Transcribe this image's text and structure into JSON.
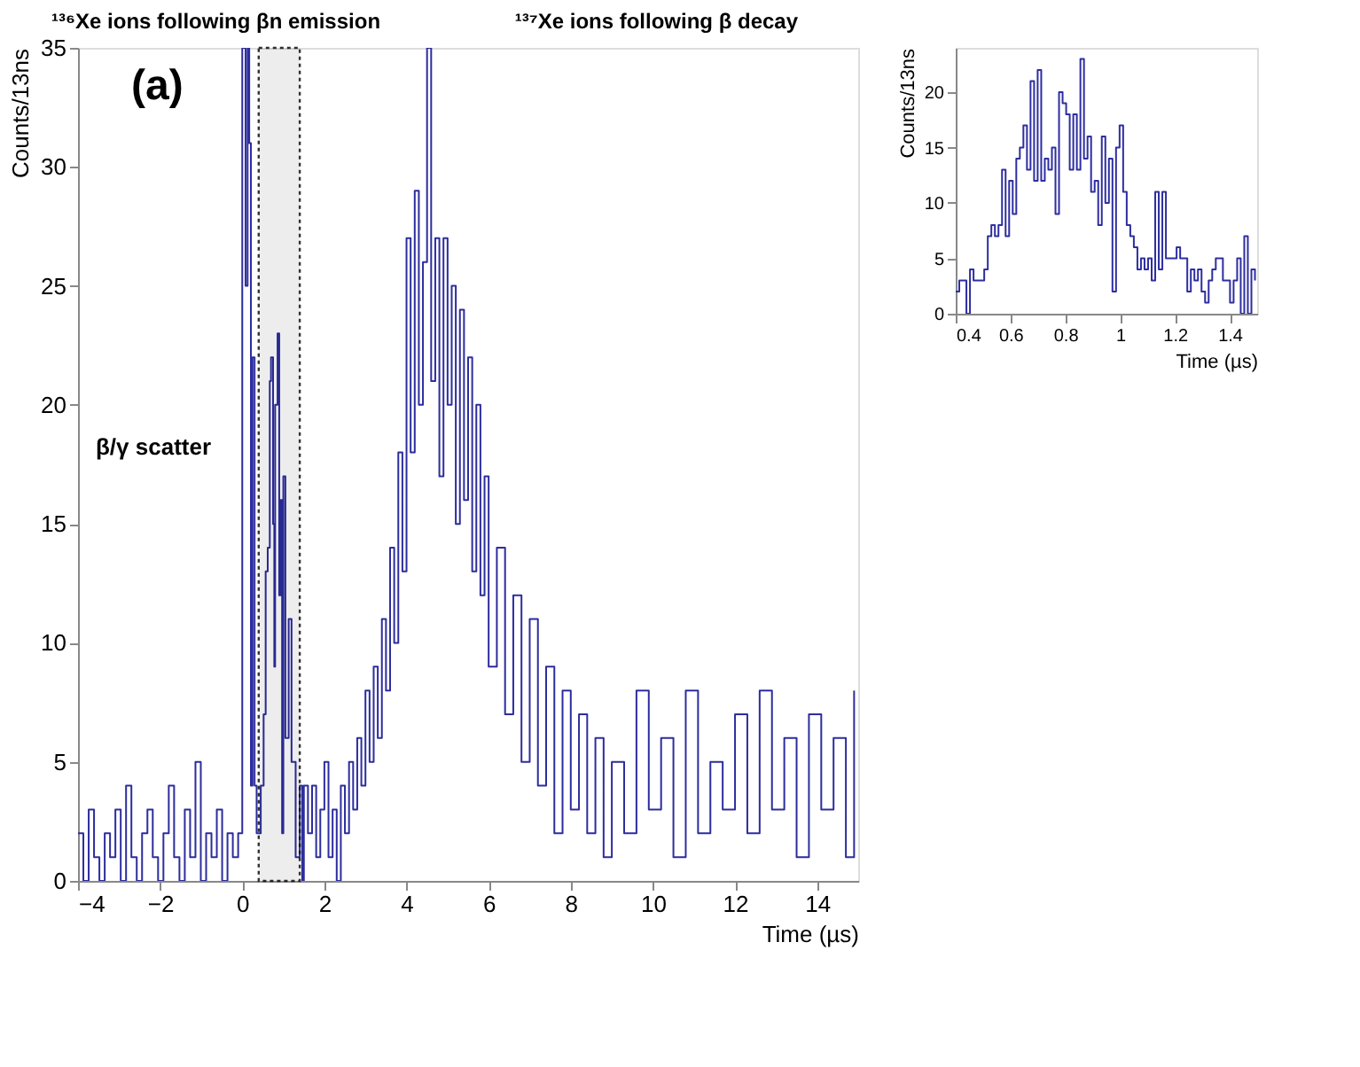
{
  "chart_data": [
    {
      "type": "step",
      "xlabel": "Time (µs)",
      "ylabel": "Counts/13ns",
      "xlim": [
        -4,
        15
      ],
      "ylim": [
        0,
        35
      ],
      "xticks": [
        -4,
        -2,
        0,
        2,
        4,
        6,
        8,
        10,
        12,
        14
      ],
      "yticks": [
        0,
        5,
        10,
        15,
        20,
        25,
        30,
        35
      ],
      "grid": false,
      "annotations": [
        "(a)",
        "¹³⁶Xe ions following βn emission",
        "¹³⁷Xe ions following β decay",
        "β/γ scatter"
      ],
      "bands": [
        {
          "axis": "x",
          "from": 0.4,
          "to": 1.4,
          "color": "#000000"
        }
      ],
      "series": [
        {
          "color": "#2d2d9e",
          "x": [
            -4,
            -3.87,
            -3.74,
            -3.61,
            -3.48,
            -3.35,
            -3.22,
            -3.09,
            -2.96,
            -2.83,
            -2.7,
            -2.57,
            -2.44,
            -2.31,
            -2.18,
            -2.05,
            -1.92,
            -1.79,
            -1.66,
            -1.53,
            -1.4,
            -1.27,
            -1.14,
            -1.01,
            -0.88,
            -0.75,
            -0.62,
            -0.49,
            -0.36,
            -0.23,
            -0.1,
            0.0,
            0.04,
            0.08,
            0.13,
            0.17,
            0.21,
            0.25,
            0.3,
            0.35,
            0.4,
            0.45,
            0.52,
            0.57,
            0.62,
            0.67,
            0.7,
            0.75,
            0.78,
            0.8,
            0.86,
            0.9,
            0.93,
            0.97,
            1.0,
            1.05,
            1.13,
            1.2,
            1.3,
            1.4,
            1.46,
            1.5,
            1.6,
            1.7,
            1.8,
            1.9,
            2.0,
            2.1,
            2.2,
            2.3,
            2.4,
            2.5,
            2.6,
            2.7,
            2.8,
            2.9,
            3.0,
            3.1,
            3.2,
            3.3,
            3.4,
            3.5,
            3.6,
            3.7,
            3.8,
            3.9,
            4.0,
            4.1,
            4.2,
            4.3,
            4.4,
            4.5,
            4.6,
            4.7,
            4.8,
            4.9,
            5.0,
            5.1,
            5.2,
            5.3,
            5.4,
            5.5,
            5.6,
            5.7,
            5.8,
            5.9,
            6.0,
            6.2,
            6.4,
            6.6,
            6.8,
            7.0,
            7.2,
            7.4,
            7.6,
            7.8,
            8.0,
            8.2,
            8.4,
            8.6,
            8.8,
            9.0,
            9.3,
            9.6,
            9.9,
            10.2,
            10.5,
            10.8,
            11.1,
            11.4,
            11.7,
            12.0,
            12.3,
            12.6,
            12.9,
            13.2,
            13.5,
            13.8,
            14.1,
            14.4,
            14.7,
            14.9
          ],
          "values": [
            2,
            0,
            3,
            1,
            0,
            2,
            1,
            3,
            0,
            4,
            1,
            0,
            2,
            3,
            1,
            0,
            2,
            4,
            1,
            0,
            3,
            1,
            5,
            0,
            2,
            1,
            3,
            0,
            2,
            1,
            2,
            35,
            35,
            25,
            35,
            31,
            4,
            22,
            4,
            2,
            2,
            4,
            7,
            13,
            14,
            21,
            22,
            15,
            9,
            20,
            23,
            12,
            16,
            2,
            17,
            6,
            11,
            5,
            1,
            4,
            0,
            4,
            2,
            4,
            1,
            3,
            5,
            1,
            3,
            0,
            4,
            2,
            5,
            3,
            6,
            4,
            8,
            5,
            9,
            6,
            11,
            8,
            14,
            10,
            18,
            13,
            27,
            18,
            29,
            20,
            26,
            35,
            21,
            27,
            17,
            27,
            20,
            25,
            15,
            24,
            16,
            22,
            13,
            20,
            12,
            17,
            9,
            14,
            7,
            12,
            5,
            11,
            4,
            9,
            2,
            8,
            3,
            7,
            2,
            6,
            1,
            5,
            2,
            8,
            3,
            6,
            1,
            8,
            2,
            5,
            3,
            7,
            2,
            8,
            3,
            6,
            1,
            7,
            3,
            6,
            1,
            8
          ]
        }
      ]
    },
    {
      "type": "step",
      "xlabel": "Time (µs)",
      "ylabel": "Counts/13ns",
      "xlim": [
        0.4,
        1.5
      ],
      "ylim": [
        0,
        24
      ],
      "xticks": [
        0.4,
        0.6,
        0.8,
        {
          "value": 1,
          "label": "1"
        },
        1.2,
        1.4
      ],
      "yticks": [
        0,
        5,
        10,
        15,
        20
      ],
      "grid": false,
      "series": [
        {
          "color": "#2e2ea0",
          "x": [
            0.4,
            0.413,
            0.426,
            0.439,
            0.452,
            0.465,
            0.478,
            0.491,
            0.504,
            0.517,
            0.53,
            0.543,
            0.556,
            0.569,
            0.582,
            0.595,
            0.608,
            0.621,
            0.634,
            0.647,
            0.66,
            0.673,
            0.686,
            0.699,
            0.712,
            0.725,
            0.738,
            0.751,
            0.764,
            0.777,
            0.79,
            0.803,
            0.816,
            0.829,
            0.842,
            0.855,
            0.868,
            0.881,
            0.894,
            0.907,
            0.92,
            0.933,
            0.946,
            0.959,
            0.972,
            0.985,
            0.998,
            1.011,
            1.024,
            1.037,
            1.05,
            1.063,
            1.076,
            1.089,
            1.102,
            1.115,
            1.128,
            1.141,
            1.154,
            1.167,
            1.18,
            1.193,
            1.206,
            1.219,
            1.232,
            1.245,
            1.258,
            1.271,
            1.284,
            1.297,
            1.31,
            1.323,
            1.336,
            1.349,
            1.362,
            1.375,
            1.388,
            1.401,
            1.414,
            1.427,
            1.44,
            1.453,
            1.466,
            1.479,
            1.492
          ],
          "values": [
            2,
            3,
            3,
            0,
            4,
            3,
            3,
            3,
            4,
            7,
            8,
            7,
            8,
            13,
            7,
            12,
            9,
            14,
            15,
            17,
            13,
            21,
            12,
            22,
            12,
            14,
            13,
            15,
            9,
            20,
            19,
            18,
            13,
            18,
            13,
            23,
            14,
            16,
            11,
            12,
            8,
            16,
            10,
            14,
            2,
            15,
            17,
            11,
            8,
            7,
            6,
            4,
            5,
            4,
            5,
            3,
            11,
            4,
            11,
            5,
            5,
            5,
            6,
            5,
            5,
            2,
            4,
            3,
            4,
            2,
            1,
            3,
            4,
            5,
            5,
            3,
            3,
            1,
            3,
            5,
            0,
            7,
            0,
            4,
            3
          ]
        }
      ]
    }
  ]
}
